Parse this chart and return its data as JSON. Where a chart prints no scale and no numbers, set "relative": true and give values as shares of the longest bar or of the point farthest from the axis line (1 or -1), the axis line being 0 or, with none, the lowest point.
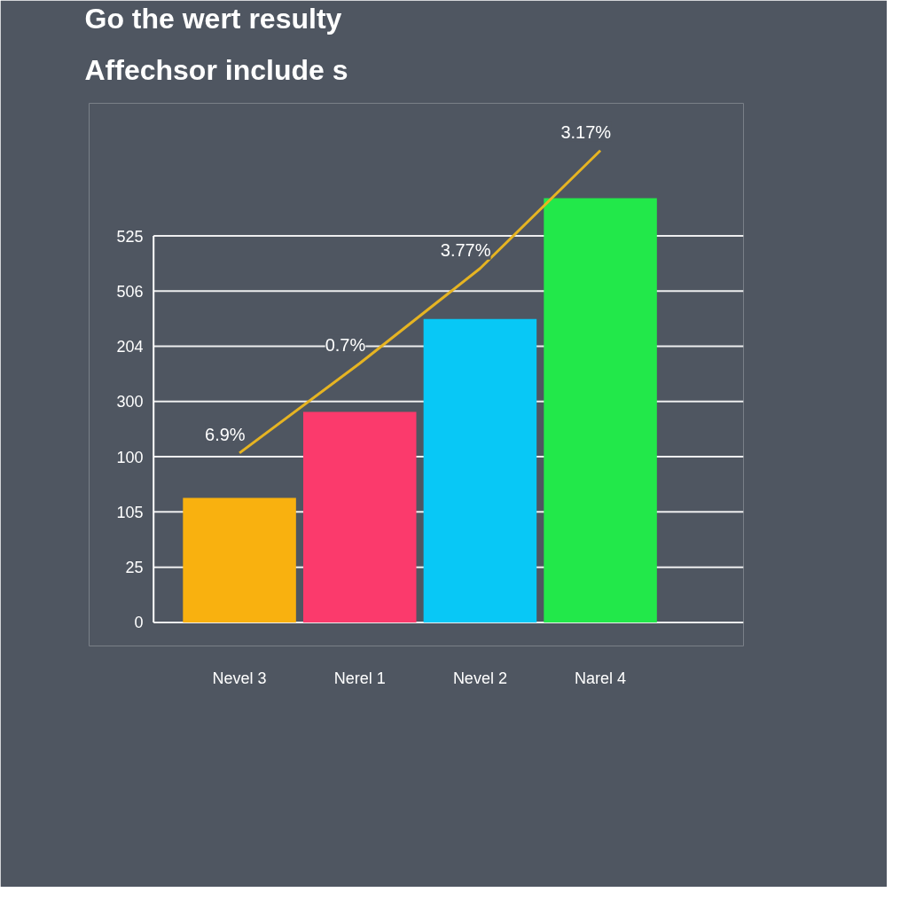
{
  "chart_data": {
    "type": "bar",
    "title": "Go the wert resulty",
    "subtitle": "Affechsor include s",
    "relative": true,
    "categories": [
      "Nevel 3",
      "Nerel 1",
      "Nevel 2",
      "Narel 4"
    ],
    "series": [
      {
        "colors": [
          "#f9b10f",
          "#fb3a6c",
          "#08c8f6",
          "#22e84a"
        ],
        "values": [
          0.264,
          0.446,
          0.643,
          0.899
        ]
      },
      {
        "type": "line",
        "color": "#e6b422",
        "values": [
          0.359,
          0.549,
          0.75,
          1.0
        ]
      }
    ],
    "annotations": [
      "0",
      "25",
      "105",
      "100",
      "300",
      "204",
      "506",
      "525",
      "6.9%",
      "0.7%",
      "3.77%",
      "3.17%"
    ],
    "grid": "y",
    "marker": "none",
    "line_style": "solid"
  }
}
